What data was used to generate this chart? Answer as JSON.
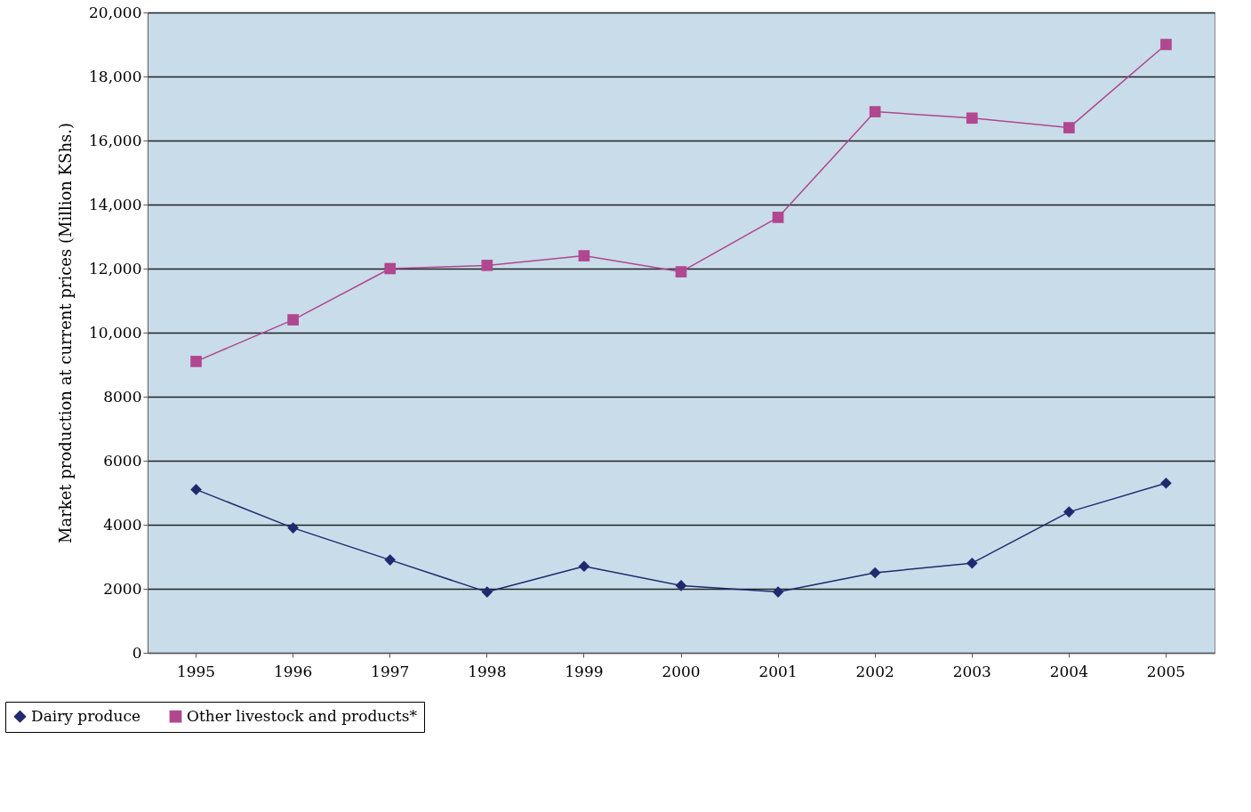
{
  "chart_data": {
    "type": "line",
    "ylabel": "Market production at current prices (Million KShs.)",
    "categories": [
      "1995",
      "1996",
      "1997",
      "1998",
      "1999",
      "2000",
      "2001",
      "2002",
      "2003",
      "2004",
      "2005"
    ],
    "series": [
      {
        "name": "Dairy produce",
        "color": "#1f2a6e",
        "marker": "diamond",
        "values": [
          5100,
          3900,
          2900,
          1900,
          2700,
          2100,
          1900,
          2500,
          2800,
          4400,
          5300
        ]
      },
      {
        "name": "Other livestock and products*",
        "color": "#b0478f",
        "marker": "square",
        "values": [
          9100,
          10400,
          12000,
          12100,
          12400,
          11900,
          13600,
          16900,
          16700,
          16400,
          19000
        ]
      }
    ],
    "ylim": [
      0,
      20000
    ],
    "yticks": [
      0,
      2000,
      4000,
      6000,
      8000,
      {
        "value": 10000,
        "label": "10,000"
      },
      {
        "value": 12000,
        "label": "12,000"
      },
      {
        "value": 14000,
        "label": "14,000"
      },
      {
        "value": 16000,
        "label": "16,000"
      },
      {
        "value": 18000,
        "label": "18,000"
      },
      {
        "value": 20000,
        "label": "20,000"
      }
    ],
    "grid": "y",
    "legend": "bottom left",
    "line_style": "solid"
  }
}
